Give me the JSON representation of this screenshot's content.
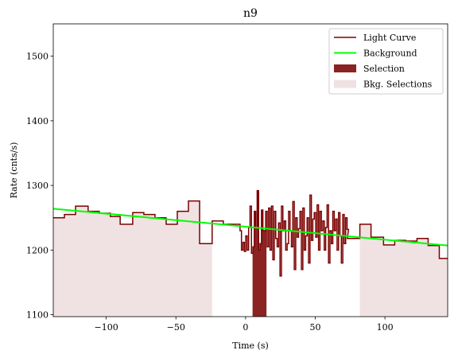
{
  "chart_data": {
    "type": "line",
    "title": "n9",
    "xlabel": "Time (s)",
    "ylabel": "Rate (cnts/s)",
    "xlim": [
      -138,
      145
    ],
    "ylim": [
      1097,
      1550
    ],
    "xticks": [
      -100,
      -50,
      0,
      50,
      100
    ],
    "xtick_labels": [
      "−100",
      "−50",
      "0",
      "50",
      "100"
    ],
    "yticks": [
      1100,
      1200,
      1300,
      1400,
      1500
    ],
    "ytick_labels": [
      "1100",
      "1200",
      "1300",
      "1400",
      "1500"
    ],
    "legend_position": "top-right",
    "colors": {
      "light_curve": "#7b0000",
      "background": "#00ff00",
      "selection": "#8b2323",
      "bkg_selection": "#f0e2e2"
    },
    "legend": [
      {
        "label": "Light Curve",
        "kind": "line",
        "color": "#7b0000"
      },
      {
        "label": "Background",
        "kind": "line",
        "color": "#00ff00"
      },
      {
        "label": "Selection",
        "kind": "patch",
        "color": "#8b2323"
      },
      {
        "label": "Bkg. Selections",
        "kind": "patch",
        "color": "#f0e2e2"
      }
    ],
    "light_curve": {
      "edges": [
        -138,
        -130,
        -122,
        -113,
        -105,
        -97,
        -90,
        -81,
        -73,
        -65,
        -57,
        -49,
        -41,
        -33,
        -24,
        -16,
        -8
      ],
      "values": [
        1250,
        1255,
        1268,
        1260,
        1257,
        1252,
        1240,
        1258,
        1255,
        1250,
        1240,
        1260,
        1276,
        1210,
        1245,
        1240
      ],
      "fine_start": -5,
      "fine_step": 1.024,
      "fine_values": [
        1240,
        1230,
        1200,
        1212,
        1198,
        1222,
        1200,
        1235,
        1268,
        1195,
        1205,
        1260,
        1235,
        1292,
        1200,
        1210,
        1262,
        1230,
        1230,
        1260,
        1205,
        1265,
        1200,
        1268,
        1185,
        1260,
        1218,
        1205,
        1242,
        1160,
        1268,
        1230,
        1245,
        1200,
        1210,
        1260,
        1230,
        1205,
        1275,
        1170,
        1250,
        1220,
        1233,
        1260,
        1170,
        1265,
        1200,
        1222,
        1250,
        1180,
        1285,
        1215,
        1248,
        1258,
        1220,
        1270,
        1200,
        1260,
        1230,
        1245,
        1200,
        1235,
        1270,
        1180,
        1230,
        1210,
        1260,
        1230,
        1248,
        1200,
        1258,
        1222,
        1180,
        1255,
        1210,
        1250,
        1232
      ],
      "tail_edges": [
        73,
        82,
        90,
        99,
        107,
        115,
        123,
        131,
        139,
        145
      ],
      "tail_values": [
        1218,
        1240,
        1220,
        1208,
        1215,
        1214,
        1218,
        1207,
        1187
      ]
    },
    "background_line": {
      "x": [
        -138,
        145
      ],
      "y": [
        1264,
        1207
      ]
    },
    "selection": {
      "x": [
        5,
        15
      ]
    },
    "bkg_selections": [
      {
        "x": [
          -138,
          -24
        ]
      },
      {
        "x": [
          82,
          145
        ]
      }
    ]
  }
}
